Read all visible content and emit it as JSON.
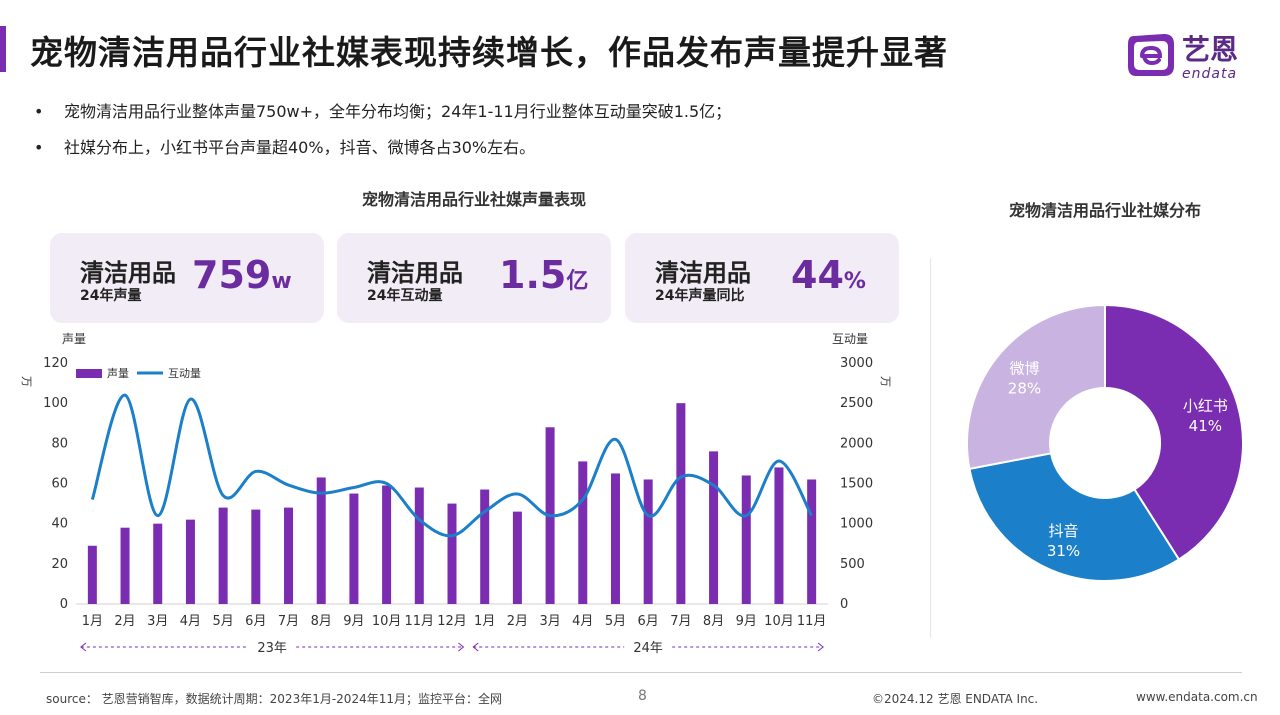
{
  "header": {
    "title": "宠物清洁用品行业社媒表现持续增长，作品发布声量提升显著",
    "logo_cn": "艺恩",
    "logo_en": "endata"
  },
  "bullets": [
    "宠物清洁用品行业整体声量750w+，全年分布均衡；24年1-11月行业整体互动量突破1.5亿；",
    "社媒分布上，小红书平台声量超40%，抖音、微博各占30%左右。"
  ],
  "bullet_symbol": "•",
  "kpis": [
    {
      "title": "清洁用品",
      "sub": "24年声量",
      "value": "759",
      "unit": "w"
    },
    {
      "title": "清洁用品",
      "sub": "24年互动量",
      "value": "1.5",
      "unit": "亿"
    },
    {
      "title": "清洁用品",
      "sub": "24年声量同比",
      "value": "44",
      "unit": "%"
    }
  ],
  "colors": {
    "bar": "#7a2db0",
    "line": "#1b7fc9",
    "accent": "#6a2c9e",
    "kpi_bg": "#f1ecf5"
  },
  "chart_data": [
    {
      "type": "bar",
      "title": "宠物清洁用品行业社媒声量表现",
      "categories": [
        "1月",
        "2月",
        "3月",
        "4月",
        "5月",
        "6月",
        "7月",
        "8月",
        "9月",
        "10月",
        "11月",
        "12月",
        "1月",
        "2月",
        "3月",
        "4月",
        "5月",
        "6月",
        "7月",
        "8月",
        "9月",
        "10月",
        "11月"
      ],
      "year_groups": [
        {
          "label": "23年",
          "start": 0,
          "end": 11
        },
        {
          "label": "24年",
          "start": 12,
          "end": 22
        }
      ],
      "y_left": {
        "label": "声量",
        "unit": "万",
        "ticks": [
          0,
          20,
          40,
          60,
          80,
          100,
          120
        ],
        "ylim": [
          0,
          120
        ]
      },
      "y_right": {
        "label": "互动量",
        "unit": "万",
        "ticks": [
          0,
          500,
          1000,
          1500,
          2000,
          2500,
          3000
        ],
        "ylim": [
          0,
          3000
        ]
      },
      "series": [
        {
          "name": "声量",
          "type": "bar",
          "axis": "left",
          "values": [
            29,
            38,
            40,
            42,
            48,
            47,
            48,
            63,
            55,
            59,
            58,
            50,
            57,
            46,
            88,
            71,
            65,
            62,
            100,
            76,
            64,
            68,
            62
          ]
        },
        {
          "name": "互动量",
          "type": "line",
          "axis": "right",
          "values": [
            1300,
            2600,
            1100,
            2550,
            1350,
            1650,
            1480,
            1380,
            1450,
            1500,
            1050,
            850,
            1150,
            1370,
            1100,
            1300,
            2050,
            1100,
            1580,
            1480,
            1100,
            1780,
            1100
          ]
        }
      ]
    },
    {
      "type": "pie",
      "title": "宠物清洁用品行业社媒分布",
      "slices": [
        {
          "label": "小红书",
          "value": 41,
          "display": "41%",
          "color": "#7a2db0"
        },
        {
          "label": "抖音",
          "value": 31,
          "display": "31%",
          "color": "#1b7fc9"
        },
        {
          "label": "微博",
          "value": 28,
          "display": "28%",
          "color": "#c9b3e0"
        }
      ]
    }
  ],
  "footer": {
    "source": "source： 艺恩营销智库，数据统计周期：2023年1月-2024年11月；监控平台：全网",
    "page": "8",
    "copyright": "©2024.12  艺恩 ENDATA Inc.",
    "url": "www.endata.com.cn"
  }
}
